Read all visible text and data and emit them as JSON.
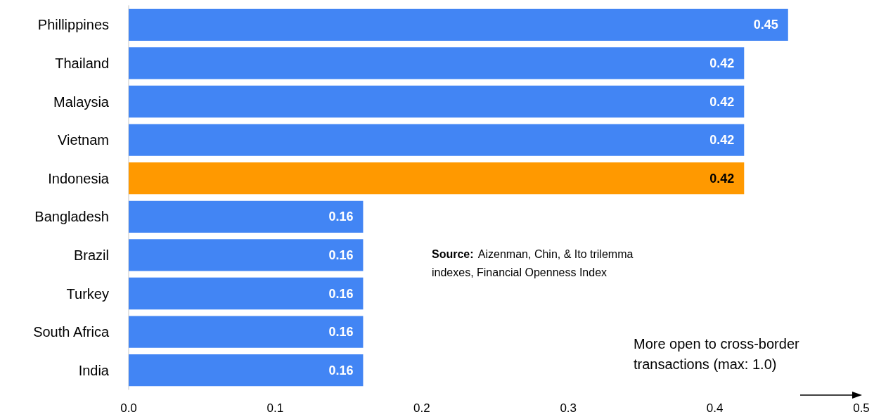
{
  "chart_data": {
    "type": "bar",
    "orientation": "horizontal",
    "categories": [
      "Phillippines",
      "Thailand",
      "Malaysia",
      "Vietnam",
      "Indonesia",
      "Bangladesh",
      "Brazil",
      "Turkey",
      "South Africa",
      "India"
    ],
    "values": [
      0.45,
      0.42,
      0.42,
      0.42,
      0.42,
      0.16,
      0.16,
      0.16,
      0.16,
      0.16
    ],
    "colors": [
      "#4285f4",
      "#4285f4",
      "#4285f4",
      "#4285f4",
      "#ff9900",
      "#4285f4",
      "#4285f4",
      "#4285f4",
      "#4285f4",
      "#4285f4"
    ],
    "data_labels": true,
    "xlim": [
      0,
      0.5
    ],
    "xticks": [
      {
        "value": 0,
        "label": "0.0"
      },
      0.1,
      0.2,
      0.3,
      0.4,
      0.5
    ],
    "grid": false,
    "annotations": [
      "Source: Aizenman, Chin, & Ito trilemma indexes, Financial Openness Index",
      "More open to cross-border transactions (max: 1.0)"
    ]
  }
}
